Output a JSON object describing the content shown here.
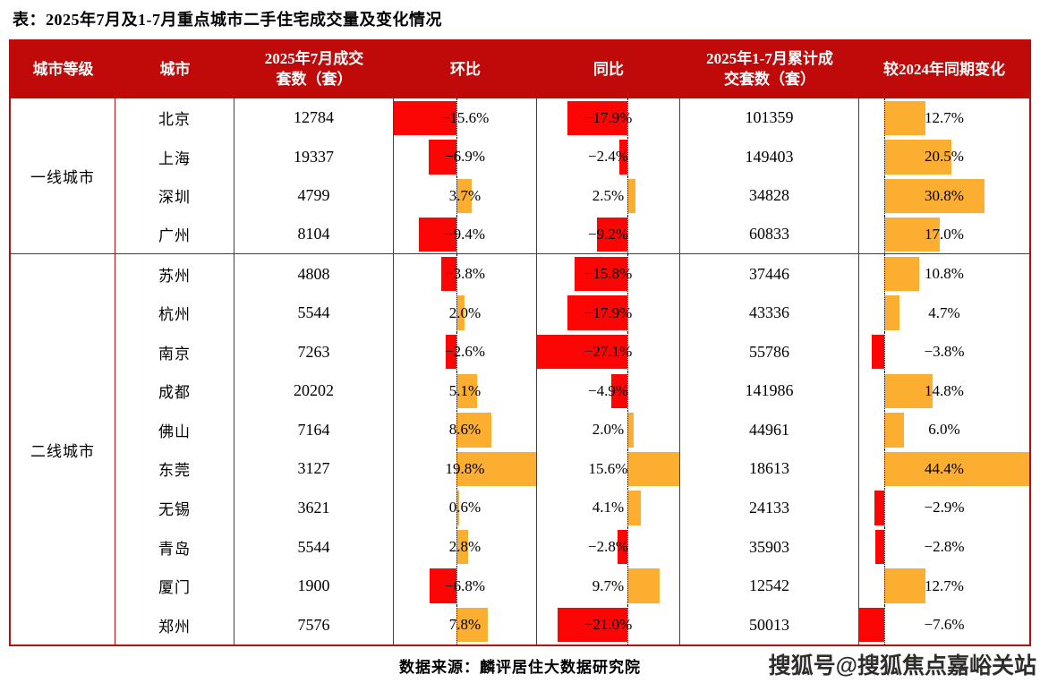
{
  "title": "表：2025年7月及1-7月重点城市二手住宅成交量及变化情况",
  "footer": {
    "source": "数据来源：麟评居住大数据研究院",
    "watermark": "搜狐号@搜狐焦点嘉峪关站"
  },
  "colors": {
    "header_bg": "#c00a0a",
    "table_border": "#c00a0a",
    "negative_bar": "#fb0505",
    "positive_bar": "#fbae2f"
  },
  "table": {
    "headers": [
      "城市等级",
      "城市",
      "2025年7月成交套数（套）",
      "环比",
      "同比",
      "2025年1-7月累计成交套数（套）",
      "较2024年同期变化"
    ],
    "tiers": [
      {
        "label": "一线城市",
        "cities": [
          {
            "name": "北京",
            "jul": 12784,
            "mom": -15.6,
            "yoy": -17.9,
            "cum": 101359,
            "ytd": 12.7
          },
          {
            "name": "上海",
            "jul": 19337,
            "mom": -6.9,
            "yoy": -2.4,
            "cum": 149403,
            "ytd": 20.5
          },
          {
            "name": "深圳",
            "jul": 4799,
            "mom": 3.7,
            "yoy": 2.5,
            "cum": 34828,
            "ytd": 30.8
          },
          {
            "name": "广州",
            "jul": 8104,
            "mom": -9.4,
            "yoy": -9.2,
            "cum": 60833,
            "ytd": 17.0
          }
        ]
      },
      {
        "label": "二线城市",
        "cities": [
          {
            "name": "苏州",
            "jul": 4808,
            "mom": -3.8,
            "yoy": -15.8,
            "cum": 37446,
            "ytd": 10.8
          },
          {
            "name": "杭州",
            "jul": 5544,
            "mom": 2.0,
            "yoy": -17.9,
            "cum": 43336,
            "ytd": 4.7
          },
          {
            "name": "南京",
            "jul": 7263,
            "mom": -2.6,
            "yoy": -27.1,
            "cum": 55786,
            "ytd": -3.8
          },
          {
            "name": "成都",
            "jul": 20202,
            "mom": 5.1,
            "yoy": -4.9,
            "cum": 141986,
            "ytd": 14.8
          },
          {
            "name": "佛山",
            "jul": 7164,
            "mom": 8.6,
            "yoy": 2.0,
            "cum": 44961,
            "ytd": 6.0
          },
          {
            "name": "东莞",
            "jul": 3127,
            "mom": 19.8,
            "yoy": 15.6,
            "cum": 18613,
            "ytd": 44.4
          },
          {
            "name": "无锡",
            "jul": 3621,
            "mom": 0.6,
            "yoy": 4.1,
            "cum": 24133,
            "ytd": -2.9
          },
          {
            "name": "青岛",
            "jul": 5544,
            "mom": 2.8,
            "yoy": -2.8,
            "cum": 35903,
            "ytd": -2.8
          },
          {
            "name": "厦门",
            "jul": 1900,
            "mom": -6.8,
            "yoy": 9.7,
            "cum": 12542,
            "ytd": 12.7
          },
          {
            "name": "郑州",
            "jul": 7576,
            "mom": 7.8,
            "yoy": -21.0,
            "cum": 50013,
            "ytd": -7.6
          }
        ]
      }
    ]
  },
  "chart_data": {
    "type": "table",
    "title": "表：2025年7月及1-7月重点城市二手住宅成交量及变化情况",
    "columns": [
      "城市等级",
      "城市",
      "2025年7月成交套数（套）",
      "环比(%)",
      "同比(%)",
      "2025年1-7月累计成交套数（套）",
      "较2024年同期变化(%)"
    ],
    "bar_columns": {
      "环比": {
        "negative_color": "#fb0505",
        "positive_color": "#fbae2f",
        "range": [
          -15.6,
          19.8
        ]
      },
      "同比": {
        "negative_color": "#fb0505",
        "positive_color": "#fbae2f",
        "range": [
          -27.1,
          15.6
        ]
      },
      "较2024年同期变化": {
        "negative_color": "#fb0505",
        "positive_color": "#fbae2f",
        "range": [
          -7.6,
          44.4
        ]
      }
    },
    "rows": [
      [
        "一线城市",
        "北京",
        12784,
        -15.6,
        -17.9,
        101359,
        12.7
      ],
      [
        "一线城市",
        "上海",
        19337,
        -6.9,
        -2.4,
        149403,
        20.5
      ],
      [
        "一线城市",
        "深圳",
        4799,
        3.7,
        2.5,
        34828,
        30.8
      ],
      [
        "一线城市",
        "广州",
        8104,
        -9.4,
        -9.2,
        60833,
        17.0
      ],
      [
        "二线城市",
        "苏州",
        4808,
        -3.8,
        -15.8,
        37446,
        10.8
      ],
      [
        "二线城市",
        "杭州",
        5544,
        2.0,
        -17.9,
        43336,
        4.7
      ],
      [
        "二线城市",
        "南京",
        7263,
        -2.6,
        -27.1,
        55786,
        -3.8
      ],
      [
        "二线城市",
        "成都",
        20202,
        5.1,
        -4.9,
        141986,
        14.8
      ],
      [
        "二线城市",
        "佛山",
        7164,
        8.6,
        2.0,
        44961,
        6.0
      ],
      [
        "二线城市",
        "东莞",
        3127,
        19.8,
        15.6,
        18613,
        44.4
      ],
      [
        "二线城市",
        "无锡",
        3621,
        0.6,
        4.1,
        24133,
        -2.9
      ],
      [
        "二线城市",
        "青岛",
        5544,
        2.8,
        -2.8,
        35903,
        -2.8
      ],
      [
        "二线城市",
        "厦门",
        1900,
        -6.8,
        9.7,
        12542,
        12.7
      ],
      [
        "二线城市",
        "郑州",
        7576,
        7.8,
        -21.0,
        50013,
        -7.6
      ]
    ],
    "source": "数据来源：麟评居住大数据研究院"
  }
}
